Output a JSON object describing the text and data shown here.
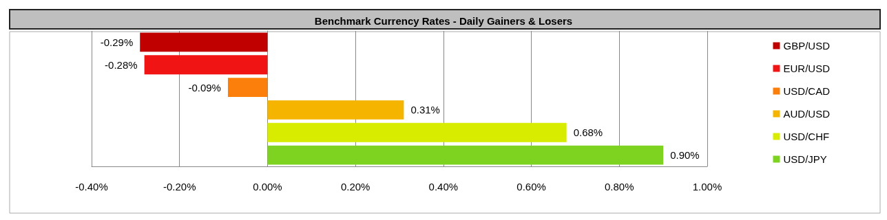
{
  "chart_data": {
    "type": "bar",
    "title": "Benchmark Currency Rates - Daily Gainers & Losers",
    "orientation": "horizontal",
    "stacked": true,
    "categories": [
      null,
      null,
      null,
      null,
      null,
      null
    ],
    "series": [
      {
        "name": "GBP/USD",
        "color": "#c00000",
        "values": [
          -0.29,
          null,
          null,
          null,
          null,
          null
        ],
        "value_labels": [
          "-0.29%",
          null,
          null,
          null,
          null,
          null
        ]
      },
      {
        "name": "EUR/USD",
        "color": "#f01414",
        "values": [
          null,
          -0.28,
          null,
          null,
          null,
          null
        ],
        "value_labels": [
          null,
          "-0.28%",
          null,
          null,
          null,
          null
        ]
      },
      {
        "name": "USD/CAD",
        "color": "#fb7f0a",
        "values": [
          null,
          null,
          -0.09,
          null,
          null,
          null
        ],
        "value_labels": [
          null,
          null,
          "-0.09%",
          null,
          null,
          null
        ]
      },
      {
        "name": "AUD/USD",
        "color": "#f5b400",
        "values": [
          null,
          null,
          null,
          0.31,
          null,
          null
        ],
        "value_labels": [
          null,
          null,
          null,
          "0.31%",
          null,
          null
        ]
      },
      {
        "name": "USD/CHF",
        "color": "#d8ec00",
        "values": [
          null,
          null,
          null,
          null,
          0.68,
          null
        ],
        "value_labels": [
          null,
          null,
          null,
          null,
          "0.68%",
          null
        ]
      },
      {
        "name": "USD/JPY",
        "color": "#7ed321",
        "values": [
          null,
          null,
          null,
          null,
          null,
          0.9
        ],
        "value_labels": [
          null,
          null,
          null,
          null,
          null,
          "0.90%"
        ]
      }
    ],
    "xlim": [
      -0.4,
      1.0
    ],
    "xticks": [
      {
        "value": -0.4,
        "label": "-0.40%"
      },
      {
        "value": -0.2,
        "label": "-0.20%"
      },
      {
        "value": 0,
        "label": "0.00%"
      },
      {
        "value": 0.2,
        "label": "0.20%"
      },
      {
        "value": 0.4,
        "label": "0.40%"
      },
      {
        "value": 0.6,
        "label": "0.60%"
      },
      {
        "value": 0.8,
        "label": "0.80%"
      },
      {
        "value": 1.0,
        "label": "1.00%"
      }
    ],
    "tick_labels": "x",
    "grid": "x",
    "legend": "right"
  }
}
